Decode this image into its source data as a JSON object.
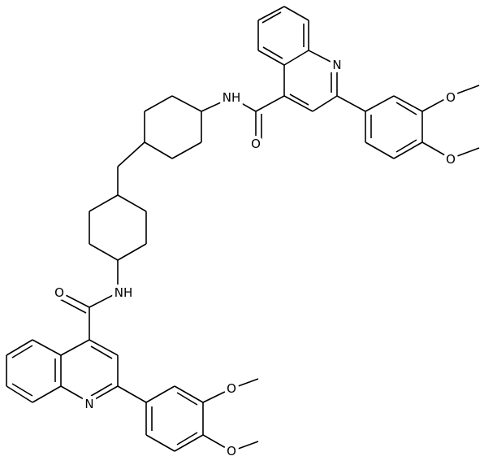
{
  "atoms": [
    {
      "label": "N"
    },
    {
      "label": "NH"
    },
    {
      "label": "O"
    },
    {
      "label": "O"
    },
    {
      "label": "O"
    },
    {
      "label": "NH"
    },
    {
      "label": "O"
    },
    {
      "label": "N"
    },
    {
      "label": "O"
    },
    {
      "label": "O"
    }
  ]
}
